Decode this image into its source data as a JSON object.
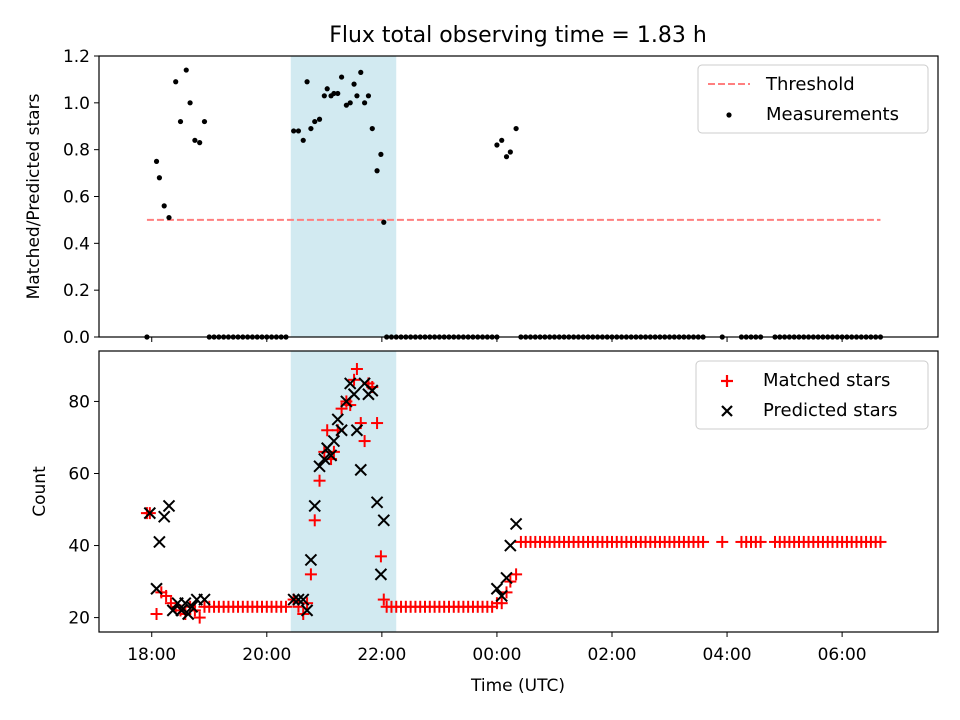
{
  "title": "Flux total observing time = 1.83 h",
  "colors": {
    "threshold": "#ff7f7f",
    "measurements": "#000000",
    "matched": "#ff0000",
    "predicted": "#000000",
    "highlight": "#add8e6"
  },
  "chart_data": [
    {
      "type": "scatter",
      "ylabel": "Matched/Predicted stars",
      "xlabel": "",
      "xlim": [
        "17:05",
        "07:40"
      ],
      "ylim": [
        0,
        1.2
      ],
      "yticks": [
        0.0,
        0.2,
        0.4,
        0.6,
        0.8,
        1.0,
        1.2
      ],
      "ytick_labels": [
        "0.0",
        "0.2",
        "0.4",
        "0.6",
        "0.8",
        "1.0",
        "1.2"
      ],
      "xticks": [
        "18:00",
        "20:00",
        "22:00",
        "00:00",
        "02:00",
        "04:00",
        "06:00"
      ],
      "xtick_labels": [
        "",
        "",
        "",
        "",
        "",
        "",
        ""
      ],
      "highlight_span": [
        "20:25",
        "22:15"
      ],
      "legend_position": "upper right",
      "legend": {
        "threshold": "Threshold",
        "measurements": "Measurements"
      },
      "threshold": {
        "value": 0.5,
        "x": [
          "17:55",
          "06:40"
        ]
      },
      "measurements_nonzero": [
        [
          "18:05",
          0.75
        ],
        [
          "18:08",
          0.68
        ],
        [
          "18:13",
          0.56
        ],
        [
          "18:18",
          0.51
        ],
        [
          "18:25",
          1.09
        ],
        [
          "18:30",
          0.92
        ],
        [
          "18:36",
          1.14
        ],
        [
          "18:40",
          1.0
        ],
        [
          "18:45",
          0.84
        ],
        [
          "18:50",
          0.83
        ],
        [
          "18:55",
          0.92
        ],
        [
          "20:28",
          0.88
        ],
        [
          "20:33",
          0.88
        ],
        [
          "20:38",
          0.84
        ],
        [
          "20:42",
          1.09
        ],
        [
          "20:46",
          0.89
        ],
        [
          "20:50",
          0.92
        ],
        [
          "20:55",
          0.93
        ],
        [
          "21:00",
          1.03
        ],
        [
          "21:03",
          1.06
        ],
        [
          "21:07",
          1.03
        ],
        [
          "21:10",
          1.04
        ],
        [
          "21:14",
          1.04
        ],
        [
          "21:18",
          1.11
        ],
        [
          "21:23",
          0.99
        ],
        [
          "21:27",
          1.0
        ],
        [
          "21:31",
          1.08
        ],
        [
          "21:34",
          1.03
        ],
        [
          "21:38",
          1.13
        ],
        [
          "21:42",
          1.0
        ],
        [
          "21:46",
          1.03
        ],
        [
          "21:50",
          0.89
        ],
        [
          "21:55",
          0.71
        ],
        [
          "21:59",
          0.78
        ],
        [
          "22:02",
          0.49
        ],
        [
          "00:00",
          0.82
        ],
        [
          "00:05",
          0.84
        ],
        [
          "00:10",
          0.77
        ],
        [
          "00:14",
          0.79
        ],
        [
          "00:20",
          0.89
        ]
      ],
      "measurements_zero_runs": [
        [
          "17:55",
          "17:58"
        ],
        [
          "19:00",
          "20:23"
        ],
        [
          "22:05",
          "00:00"
        ],
        [
          "00:25",
          "03:35"
        ],
        [
          "03:55",
          "03:55"
        ],
        [
          "04:15",
          "04:35"
        ],
        [
          "04:50",
          "06:40"
        ]
      ]
    },
    {
      "type": "scatter",
      "xlabel": "Time (UTC)",
      "ylabel": "Count",
      "xlim": [
        "17:05",
        "07:40"
      ],
      "ylim": [
        16,
        94
      ],
      "yticks": [
        20,
        40,
        60,
        80
      ],
      "ytick_labels": [
        "20",
        "40",
        "60",
        "80"
      ],
      "xticks": [
        "18:00",
        "20:00",
        "22:00",
        "00:00",
        "02:00",
        "04:00",
        "06:00"
      ],
      "xtick_labels": [
        "18:00",
        "20:00",
        "22:00",
        "00:00",
        "02:00",
        "04:00",
        "06:00"
      ],
      "highlight_span": [
        "20:25",
        "22:15"
      ],
      "legend_position": "upper right",
      "series": [
        {
          "name": "Matched stars",
          "marker": "plus",
          "points": [
            [
              "17:55",
              49
            ],
            [
              "17:58",
              49
            ],
            [
              "18:05",
              21
            ],
            [
              "18:10",
              27
            ],
            [
              "18:15",
              26
            ],
            [
              "18:20",
              24
            ],
            [
              "18:25",
              23
            ],
            [
              "18:30",
              22
            ],
            [
              "18:35",
              21
            ],
            [
              "18:40",
              23
            ],
            [
              "18:45",
              22
            ],
            [
              "18:50",
              20
            ],
            [
              "18:55",
              23
            ],
            [
              "20:28",
              25
            ],
            [
              "20:33",
              23
            ],
            [
              "20:38",
              21
            ],
            [
              "20:42",
              24
            ],
            [
              "20:46",
              32
            ],
            [
              "20:50",
              47
            ],
            [
              "20:55",
              58
            ],
            [
              "21:00",
              66
            ],
            [
              "21:03",
              72
            ],
            [
              "21:07",
              64
            ],
            [
              "21:10",
              66
            ],
            [
              "21:14",
              72
            ],
            [
              "21:18",
              78
            ],
            [
              "21:23",
              80
            ],
            [
              "21:27",
              79
            ],
            [
              "21:31",
              86
            ],
            [
              "21:34",
              89
            ],
            [
              "21:38",
              74
            ],
            [
              "21:42",
              69
            ],
            [
              "21:46",
              85
            ],
            [
              "21:50",
              84
            ],
            [
              "21:55",
              74
            ],
            [
              "21:59",
              37
            ],
            [
              "22:02",
              25
            ],
            [
              "00:00",
              24
            ],
            [
              "00:05",
              24
            ],
            [
              "00:10",
              27
            ],
            [
              "00:14",
              30
            ],
            [
              "00:20",
              32
            ]
          ],
          "runs": [
            [
              "19:00",
              "20:23",
              23
            ],
            [
              "22:05",
              "23:55",
              23
            ],
            [
              "00:25",
              "03:35",
              41
            ],
            [
              "03:55",
              "03:55",
              41
            ],
            [
              "04:15",
              "04:35",
              41
            ],
            [
              "04:50",
              "06:40",
              41
            ]
          ]
        },
        {
          "name": "Predicted stars",
          "marker": "x",
          "points": [
            [
              "17:58",
              49
            ],
            [
              "18:05",
              28
            ],
            [
              "18:08",
              41
            ],
            [
              "18:13",
              48
            ],
            [
              "18:18",
              51
            ],
            [
              "18:22",
              22
            ],
            [
              "18:27",
              24
            ],
            [
              "18:31",
              22
            ],
            [
              "18:35",
              24
            ],
            [
              "18:38",
              21
            ],
            [
              "18:42",
              23
            ],
            [
              "18:47",
              25
            ],
            [
              "18:55",
              25
            ],
            [
              "20:28",
              25
            ],
            [
              "20:33",
              25
            ],
            [
              "20:38",
              25
            ],
            [
              "20:42",
              22
            ],
            [
              "20:46",
              36
            ],
            [
              "20:50",
              51
            ],
            [
              "20:55",
              62
            ],
            [
              "21:00",
              64
            ],
            [
              "21:03",
              67
            ],
            [
              "21:07",
              65
            ],
            [
              "21:10",
              69
            ],
            [
              "21:14",
              75
            ],
            [
              "21:18",
              72
            ],
            [
              "21:23",
              80
            ],
            [
              "21:27",
              85
            ],
            [
              "21:31",
              82
            ],
            [
              "21:34",
              72
            ],
            [
              "21:38",
              61
            ],
            [
              "21:42",
              85
            ],
            [
              "21:46",
              82
            ],
            [
              "21:50",
              83
            ],
            [
              "21:55",
              52
            ],
            [
              "21:59",
              32
            ],
            [
              "22:02",
              47
            ],
            [
              "00:00",
              28
            ],
            [
              "00:05",
              26
            ],
            [
              "00:10",
              31
            ],
            [
              "00:14",
              40
            ],
            [
              "00:20",
              46
            ]
          ]
        }
      ]
    }
  ]
}
